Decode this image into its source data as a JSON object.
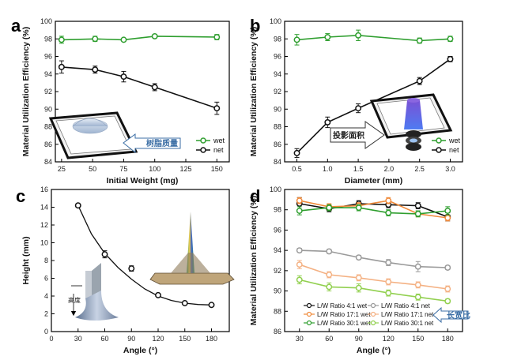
{
  "chart_data": [
    {
      "panel": "a",
      "type": "line",
      "xlabel": "Initial Weight (mg)",
      "ylabel": "Material Utilization Efficiency (%)",
      "xlim": [
        20,
        160
      ],
      "ylim": [
        84,
        100
      ],
      "xticks": [
        25,
        50,
        75,
        100,
        125,
        150
      ],
      "yticks": [
        84,
        86,
        88,
        90,
        92,
        94,
        96,
        98,
        100
      ],
      "series": [
        {
          "name": "wet",
          "color": "#2e9e2e",
          "x": [
            25,
            52,
            75,
            100,
            150
          ],
          "values": [
            97.9,
            98.0,
            97.9,
            98.3,
            98.2
          ],
          "err": [
            0.4,
            0.3,
            0.1,
            0.2,
            0.3
          ]
        },
        {
          "name": "net",
          "color": "#111111",
          "x": [
            25,
            52,
            75,
            100,
            150
          ],
          "values": [
            94.8,
            94.5,
            93.7,
            92.5,
            90.1
          ],
          "err": [
            0.7,
            0.4,
            0.6,
            0.4,
            0.7
          ]
        }
      ],
      "legend": [
        "wet",
        "net"
      ],
      "annotation": "树脂质量"
    },
    {
      "panel": "b",
      "type": "line",
      "xlabel": "Diameter (mm)",
      "ylabel": "Material Utilization Efficiency (%)",
      "xlim": [
        0.3,
        3.2
      ],
      "ylim": [
        84,
        100
      ],
      "xticks": [
        0.5,
        1.0,
        1.5,
        2.0,
        2.5,
        3.0
      ],
      "yticks": [
        84,
        86,
        88,
        90,
        92,
        94,
        96,
        98,
        100
      ],
      "series": [
        {
          "name": "wet",
          "color": "#2e9e2e",
          "x": [
            0.5,
            1.0,
            1.5,
            2.5,
            3.0
          ],
          "values": [
            97.9,
            98.2,
            98.4,
            97.8,
            98.0
          ],
          "err": [
            0.6,
            0.4,
            0.6,
            0.3,
            0.3
          ]
        },
        {
          "name": "net",
          "color": "#111111",
          "x": [
            0.5,
            1.0,
            1.5,
            2.5,
            3.0
          ],
          "values": [
            85.0,
            88.5,
            90.1,
            93.2,
            95.7
          ],
          "err": [
            0.5,
            0.6,
            0.5,
            0.4,
            0.3
          ]
        }
      ],
      "legend": [
        "wet",
        "net"
      ],
      "annotation": "投影面积"
    },
    {
      "panel": "c",
      "type": "scatter",
      "xlabel": "Angle (°)",
      "ylabel": "Height (mm)",
      "xlim": [
        0,
        200
      ],
      "ylim": [
        0,
        16
      ],
      "xticks": [
        0,
        30,
        60,
        90,
        120,
        150,
        180
      ],
      "yticks": [
        0,
        2,
        4,
        6,
        8,
        10,
        12,
        14,
        16
      ],
      "series": [
        {
          "name": "height",
          "color": "#111111",
          "x": [
            30,
            60,
            90,
            120,
            150,
            180
          ],
          "values": [
            14.2,
            8.7,
            7.1,
            4.1,
            3.2,
            3.0
          ],
          "err": [
            0.2,
            0.4,
            0.3,
            0.1,
            0.1,
            0.1
          ]
        }
      ],
      "fit_curve": {
        "x": [
          30,
          45,
          60,
          75,
          90,
          105,
          120,
          135,
          150,
          165,
          180
        ],
        "values": [
          14.2,
          11.0,
          8.8,
          7.2,
          5.9,
          4.8,
          4.0,
          3.5,
          3.2,
          3.05,
          3.0
        ]
      },
      "annotation": "高度"
    },
    {
      "panel": "d",
      "type": "line",
      "xlabel": "Angle (°)",
      "ylabel": "Material Utilization Efficiency (%)",
      "xlim": [
        15,
        195
      ],
      "ylim": [
        86,
        100
      ],
      "xticks": [
        30,
        60,
        90,
        120,
        150,
        180
      ],
      "yticks": [
        86,
        88,
        90,
        92,
        94,
        96,
        98,
        100
      ],
      "series": [
        {
          "name": "L/W Ratio 4:1 wet",
          "color": "#111111",
          "filled": false,
          "x": [
            30,
            60,
            90,
            120,
            150,
            180
          ],
          "values": [
            98.6,
            98.1,
            98.6,
            98.5,
            98.4,
            97.3
          ],
          "err": [
            0.6,
            0.3,
            0.3,
            0.3,
            0.3,
            0.4
          ]
        },
        {
          "name": "L/W Ratio 17:1 wet",
          "color": "#f08a3a",
          "filled": false,
          "x": [
            30,
            60,
            90,
            120,
            150,
            180
          ],
          "values": [
            98.9,
            98.3,
            98.4,
            98.9,
            97.6,
            97.2
          ],
          "err": [
            0.3,
            0.3,
            0.3,
            0.3,
            0.3,
            0.3
          ]
        },
        {
          "name": "L/W Ratio 30:1 wet",
          "color": "#2e9e2e",
          "filled": false,
          "x": [
            30,
            60,
            90,
            120,
            150,
            180
          ],
          "values": [
            97.9,
            98.2,
            98.2,
            97.7,
            97.6,
            97.9
          ],
          "err": [
            0.4,
            0.3,
            0.3,
            0.3,
            0.3,
            0.4
          ]
        },
        {
          "name": "L/W Ratio 4:1 net",
          "color": "#9a9a9a",
          "filled": false,
          "x": [
            30,
            60,
            90,
            120,
            150,
            180
          ],
          "values": [
            94.0,
            93.9,
            93.3,
            92.8,
            92.4,
            92.3
          ],
          "err": [
            0.2,
            0.2,
            0.2,
            0.3,
            0.5,
            0.2
          ]
        },
        {
          "name": "L/W Ratio 17:1 net",
          "color": "#f4b183",
          "filled": false,
          "x": [
            30,
            60,
            90,
            120,
            150,
            180
          ],
          "values": [
            92.6,
            91.6,
            91.3,
            90.9,
            90.6,
            90.2
          ],
          "err": [
            0.4,
            0.3,
            0.3,
            0.3,
            0.3,
            0.3
          ]
        },
        {
          "name": "L/W Ratio 30:1 net",
          "color": "#92d050",
          "filled": false,
          "x": [
            30,
            60,
            90,
            120,
            150,
            180
          ],
          "values": [
            91.1,
            90.4,
            90.3,
            89.8,
            89.4,
            89.0
          ],
          "err": [
            0.4,
            0.4,
            0.4,
            0.3,
            0.3,
            0.2
          ]
        }
      ],
      "annotation": "长宽比"
    }
  ],
  "panel_letters": [
    "a",
    "b",
    "c",
    "d"
  ]
}
